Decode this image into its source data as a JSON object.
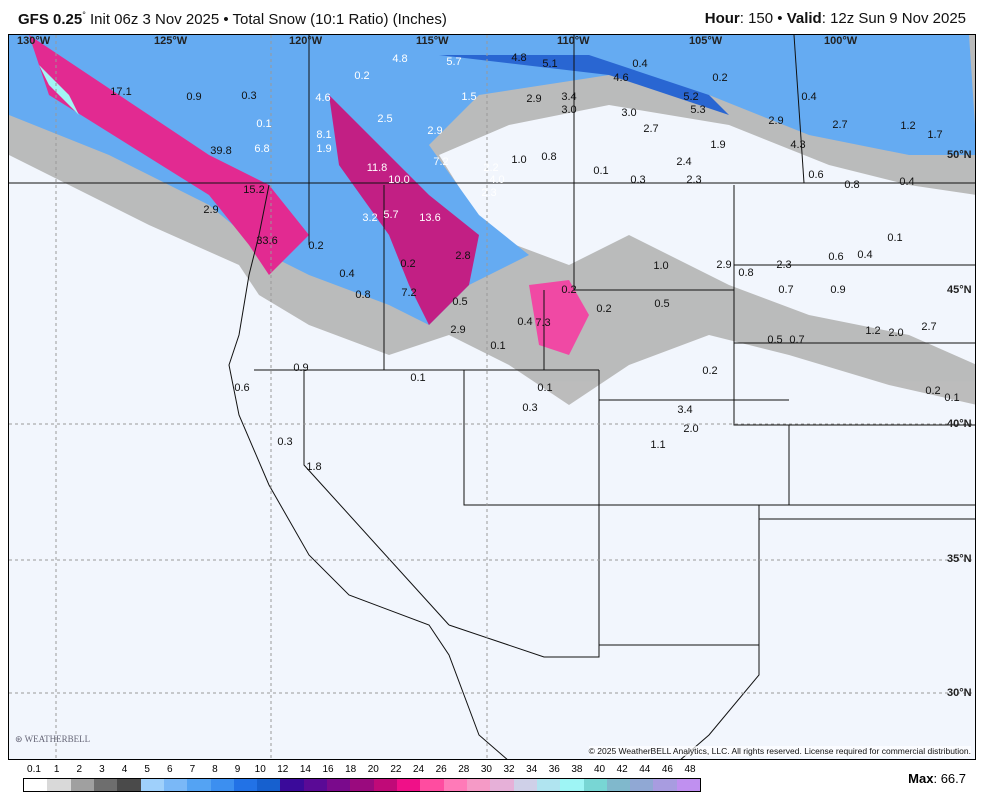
{
  "header": {
    "model": "GFS 0.25",
    "model_sup": "°",
    "title": " Init 06z 3 Nov 2025 • Total Snow (10:1 Ratio) (Inches)",
    "hour_label": "Hour",
    "hour": ": 150 • ",
    "valid_label": "Valid",
    "valid": ": 12z Sun 9 Nov 2025"
  },
  "map": {
    "longitudes": [
      "130°W",
      "125°W",
      "120°W",
      "115°W",
      "110°W",
      "105°W",
      "100°W"
    ],
    "latitudes": [
      "50°N",
      "45°N",
      "40°N",
      "35°N",
      "30°N"
    ],
    "values": [
      "17.1",
      "0.9",
      "0.3",
      "0.1",
      "39.8",
      "6.8",
      "15.2",
      "2.9",
      "33.6",
      "0.2",
      "4.8",
      "5.7",
      "4.8",
      "5.1",
      "0.4",
      "0.2",
      "4.6",
      "8.1",
      "1.9",
      "11.8",
      "10.0",
      "7.2",
      "2.5",
      "2.9",
      "1.5",
      "2.9",
      "3.4",
      "3.0",
      "4.6",
      "5.2",
      "5.3",
      "3.0",
      "2.7",
      "2.9",
      "2.7",
      "4.3",
      "1.9",
      "1.2",
      "1.7",
      "0.2",
      "0.4",
      "3.2",
      "5.7",
      "13.6",
      "2.2",
      "4.0",
      "2.3",
      "1.0",
      "0.8",
      "0.1",
      "0.3",
      "2.3",
      "2.4",
      "0.6",
      "0.8",
      "0.4",
      "7.2",
      "0.8",
      "0.4",
      "0.2",
      "2.8",
      "0.5",
      "2.9",
      "7.3",
      "0.4",
      "0.2",
      "0.1",
      "1.0",
      "0.5",
      "2.9",
      "0.8",
      "2.3",
      "0.6",
      "0.7",
      "0.9",
      "0.1",
      "0.4",
      "2.0",
      "1.2",
      "2.7",
      "0.5",
      "0.7",
      "0.2",
      "3.4",
      "2.0",
      "1.1",
      "0.1",
      "0.3",
      "0.9",
      "0.6",
      "0.3",
      "1.8",
      "0.1",
      "0.2",
      "0.1",
      "0.2"
    ],
    "copyright": "© 2025 WeatherBELL Analytics, LLC. All rights reserved. License required for commercial distribution.",
    "logo": "WeatherBELL"
  },
  "legend": {
    "ticks": [
      "0.1",
      "1",
      "2",
      "3",
      "4",
      "5",
      "6",
      "7",
      "8",
      "9",
      "10",
      "12",
      "14",
      "16",
      "18",
      "20",
      "22",
      "24",
      "26",
      "28",
      "30",
      "32",
      "34",
      "36",
      "38",
      "40",
      "42",
      "44",
      "46",
      "48"
    ],
    "colors": [
      "#ffffff",
      "#d9d9d9",
      "#a0a0a0",
      "#6e6e6e",
      "#4a4a4a",
      "#9fd0fb",
      "#7ab8f7",
      "#54a3f3",
      "#3c8ff0",
      "#2272e6",
      "#1660cf",
      "#3a0a9a",
      "#5a0a96",
      "#7a0a8c",
      "#9a0a7e",
      "#c00a78",
      "#f01088",
      "#ff4ca0",
      "#ff7ab8",
      "#f59ac6",
      "#e6b0d8",
      "#cfd0e8",
      "#b0e4f0",
      "#9ef5f5",
      "#78d6d4",
      "#80b8cc",
      "#90a8d4",
      "#a89ce0",
      "#c090f0"
    ],
    "max_label": "Max",
    "max_value": ": 66.7"
  }
}
